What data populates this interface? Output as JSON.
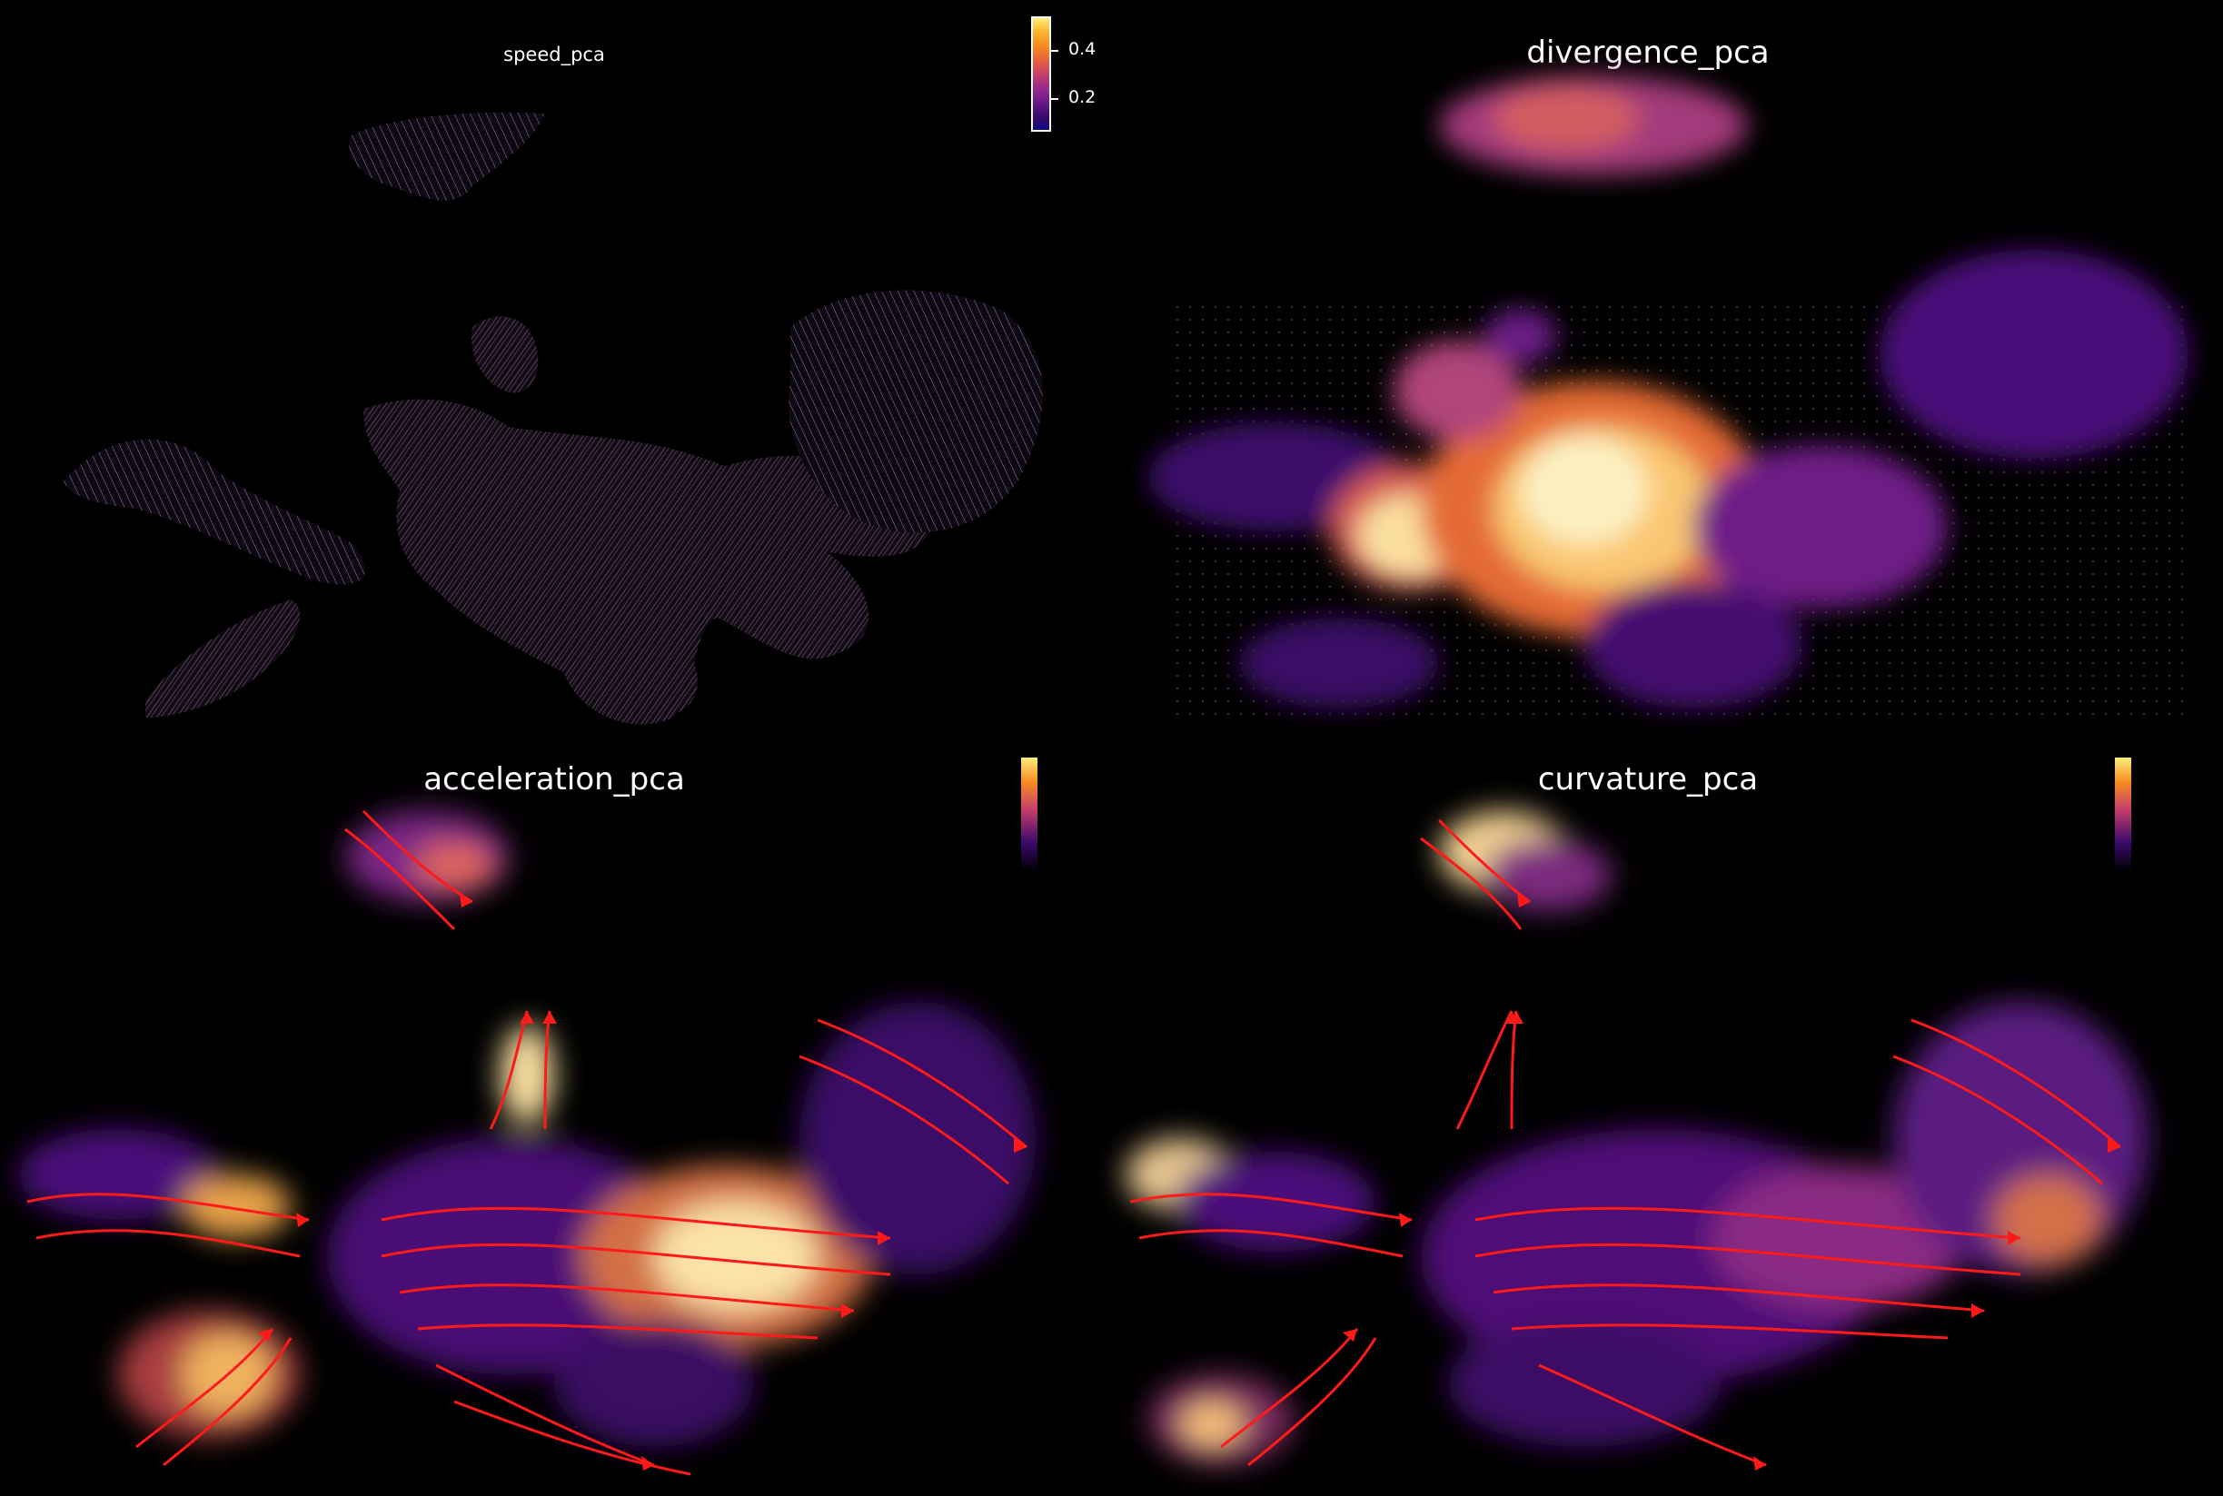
{
  "panels": [
    {
      "id": "speed",
      "title": "speed_pca",
      "colorbar": {
        "ticks": [
          "0.4",
          "0.2"
        ]
      }
    },
    {
      "id": "divergence",
      "title": "divergence_pca"
    },
    {
      "id": "acceleration",
      "title": "acceleration_pca"
    },
    {
      "id": "curvature",
      "title": "curvature_pca"
    }
  ],
  "colors": {
    "background": "#000000",
    "stream": "#ff0000",
    "colormap": [
      "#0d0887",
      "#6a1a8a",
      "#c8406b",
      "#f78a1f",
      "#fcee7a"
    ]
  },
  "chart_data": [
    {
      "type": "scatter",
      "title": "speed_pca",
      "colorbar_ticks": [
        0.4,
        0.2
      ],
      "colormap": "inferno",
      "axes": "off"
    },
    {
      "type": "scatter",
      "title": "divergence_pca",
      "colormap": "inferno",
      "axes": "off"
    },
    {
      "type": "scatter",
      "title": "acceleration_pca",
      "colormap": "inferno",
      "axes": "off",
      "overlay": "streamlines"
    },
    {
      "type": "scatter",
      "title": "curvature_pca",
      "colormap": "inferno",
      "axes": "off",
      "overlay": "streamlines"
    }
  ]
}
